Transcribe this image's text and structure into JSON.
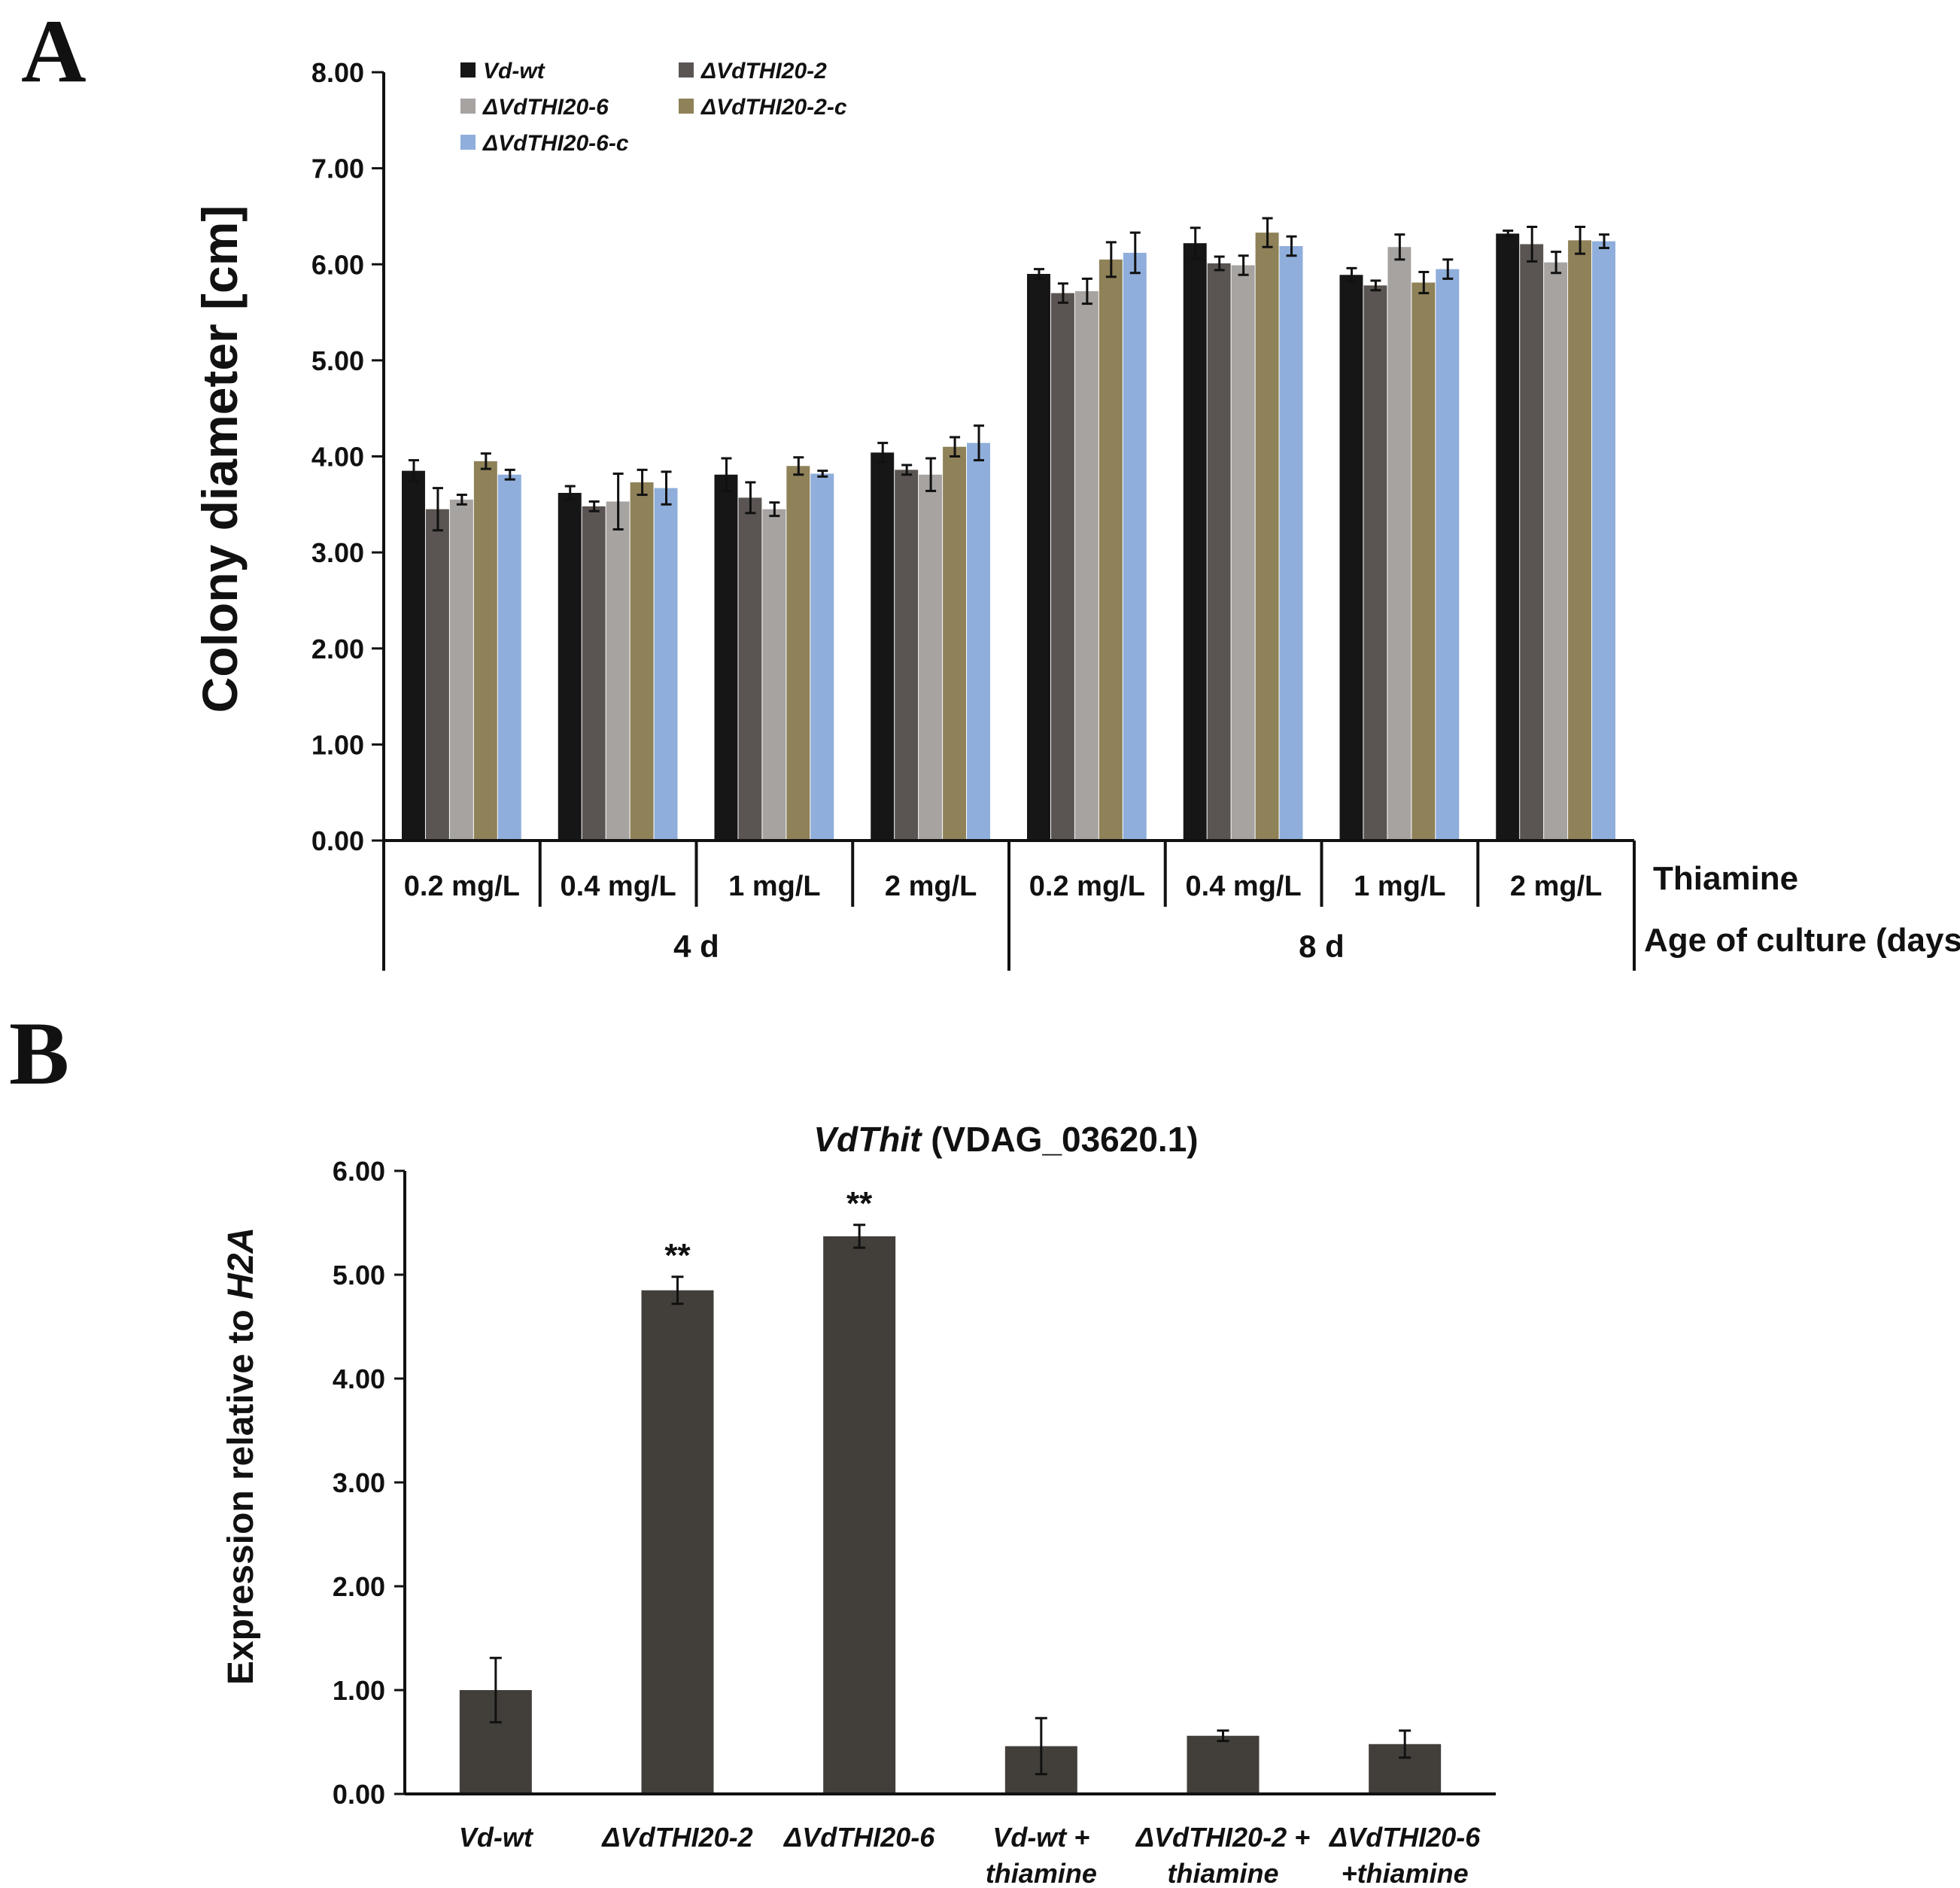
{
  "panels": {
    "a_label": "A",
    "b_label": "B"
  },
  "colors": {
    "axis": "#111111",
    "bar_b": "#423f3b",
    "errorbar": "#111111"
  },
  "chart_data": [
    {
      "id": "A",
      "type": "bar",
      "ylabel": "Colony diameter [cm]",
      "ylim": [
        0,
        8
      ],
      "yticks": [
        "0.00",
        "1.00",
        "2.00",
        "3.00",
        "4.00",
        "5.00",
        "6.00",
        "7.00",
        "8.00"
      ],
      "categories": [
        "0.2 mg/L",
        "0.4 mg/L",
        "1 mg/L",
        "2 mg/L",
        "0.2 mg/L",
        "0.4 mg/L",
        "1 mg/L",
        "2 mg/L"
      ],
      "groups": [
        {
          "label": "4 d",
          "span": [
            0,
            3
          ]
        },
        {
          "label": "8 d",
          "span": [
            4,
            7
          ]
        }
      ],
      "category_axis_label": "Thiamine",
      "group_axis_label": "Age of culture (days)",
      "series": [
        {
          "name": "Vd-wt",
          "color": "#161616",
          "values": [
            3.85,
            3.62,
            3.81,
            4.04,
            5.9,
            6.22,
            5.89,
            6.32
          ],
          "errors": [
            0.11,
            0.07,
            0.17,
            0.1,
            0.05,
            0.16,
            0.07,
            0.03
          ]
        },
        {
          "name": "ΔVdTHI20-2",
          "color": "#5a5552",
          "values": [
            3.45,
            3.48,
            3.57,
            3.86,
            5.7,
            6.01,
            5.78,
            6.21
          ],
          "errors": [
            0.22,
            0.05,
            0.16,
            0.05,
            0.1,
            0.07,
            0.05,
            0.18
          ]
        },
        {
          "name": "ΔVdTHI20-6",
          "color": "#a6a3a1",
          "values": [
            3.55,
            3.53,
            3.45,
            3.81,
            5.72,
            5.99,
            6.18,
            6.02
          ],
          "errors": [
            0.05,
            0.29,
            0.07,
            0.17,
            0.13,
            0.1,
            0.13,
            0.11
          ]
        },
        {
          "name": "ΔVdTHI20-2-c",
          "color": "#8f8158",
          "values": [
            3.95,
            3.73,
            3.9,
            4.1,
            6.05,
            6.33,
            5.81,
            6.25
          ],
          "errors": [
            0.08,
            0.13,
            0.09,
            0.1,
            0.18,
            0.15,
            0.11,
            0.14
          ]
        },
        {
          "name": "ΔVdTHI20-6-c",
          "color": "#8faedb",
          "values": [
            3.81,
            3.67,
            3.82,
            4.14,
            6.12,
            6.19,
            5.95,
            6.24
          ],
          "errors": [
            0.05,
            0.17,
            0.03,
            0.18,
            0.21,
            0.1,
            0.1,
            0.07
          ]
        }
      ]
    },
    {
      "id": "B",
      "type": "bar",
      "title_gene": "VdThit",
      "title_rest": " (VDAG_03620.1)",
      "ylabel_prefix": "Expression relative to ",
      "ylabel_gene": "H2A",
      "ylim": [
        0,
        6
      ],
      "yticks": [
        "0.00",
        "1.00",
        "2.00",
        "3.00",
        "4.00",
        "5.00",
        "6.00"
      ],
      "categories": [
        {
          "line1": "Vd-wt",
          "line2": ""
        },
        {
          "line1": "ΔVdTHI20-2",
          "line2": ""
        },
        {
          "line1": "ΔVdTHI20-6",
          "line2": ""
        },
        {
          "line1": "Vd-wt +",
          "line2": "thiamine"
        },
        {
          "line1": "ΔVdTHI20-2 +",
          "line2": "thiamine"
        },
        {
          "line1": "ΔVdTHI20-6",
          "line2": "+thiamine"
        }
      ],
      "values": [
        1.0,
        4.85,
        5.37,
        0.46,
        0.56,
        0.48
      ],
      "errors": [
        0.31,
        0.13,
        0.11,
        0.27,
        0.05,
        0.13
      ],
      "annotations": [
        "",
        "**",
        "**",
        "",
        "",
        ""
      ]
    }
  ]
}
